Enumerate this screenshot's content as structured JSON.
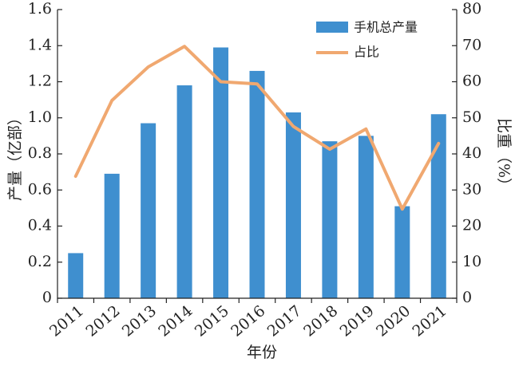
{
  "chart_data": {
    "type": "bar+line",
    "title": "",
    "xlabel": "年份",
    "ylabel_left": "产量（亿部）",
    "ylabel_right": "比重（%）",
    "categories": [
      "2011",
      "2012",
      "2013",
      "2014",
      "2015",
      "2016",
      "2017",
      "2018",
      "2019",
      "2020",
      "2021"
    ],
    "ylim_left": [
      0,
      1.6
    ],
    "yticks_left": [
      "0",
      "0.2",
      "0.4",
      "0.6",
      "0.8",
      "1.0",
      "1.2",
      "1.4",
      "1.6"
    ],
    "ylim_right": [
      0,
      80
    ],
    "yticks_right": [
      "0",
      "10",
      "20",
      "30",
      "40",
      "50",
      "60",
      "70",
      "80"
    ],
    "grid": false,
    "legend_position": "top-right",
    "series": [
      {
        "name": "手机总产量",
        "type": "bar",
        "axis": "left",
        "color": "#3f8fcf",
        "values": [
          0.25,
          0.69,
          0.97,
          1.18,
          1.39,
          1.26,
          1.03,
          0.87,
          0.9,
          0.51,
          1.02
        ]
      },
      {
        "name": "占比",
        "type": "line",
        "axis": "right",
        "color": "#f0a870",
        "values": [
          33.8,
          54.8,
          64.1,
          69.8,
          60.0,
          59.4,
          47.6,
          41.3,
          46.9,
          24.7,
          42.9
        ]
      }
    ]
  }
}
